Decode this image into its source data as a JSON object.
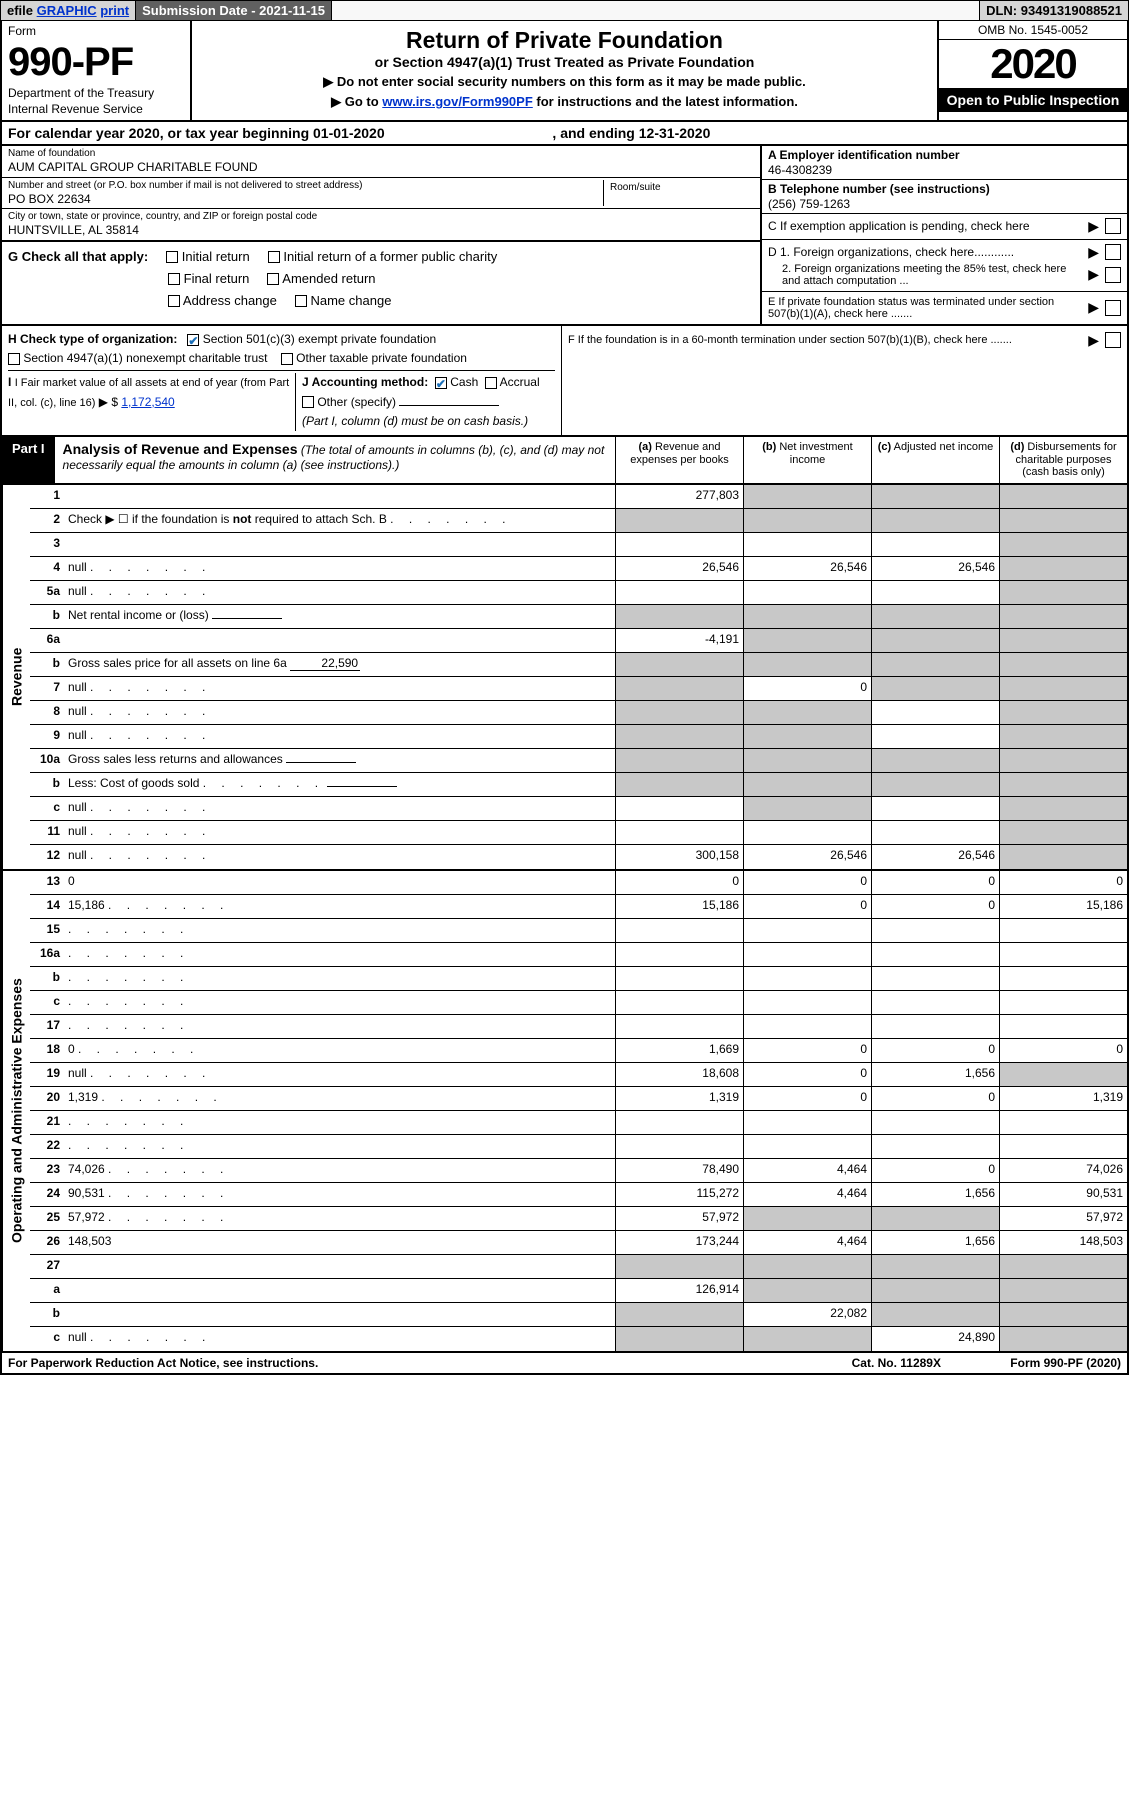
{
  "topbar": {
    "efile": "efile",
    "graphic": "GRAPHIC",
    "print": "print",
    "sub_date_label": "Submission Date - ",
    "sub_date": "2021-11-15",
    "dln_label": "DLN: ",
    "dln": "93491319088521"
  },
  "head": {
    "form_word": "Form",
    "form_num": "990-PF",
    "dept": "Department of the Treasury",
    "irs": "Internal Revenue Service",
    "title": "Return of Private Foundation",
    "subtitle": "or Section 4947(a)(1) Trust Treated as Private Foundation",
    "instr1_prefix": "▶ Do not enter social security numbers on this form as it may be made public.",
    "instr2_prefix": "▶ Go to ",
    "instr2_link": "www.irs.gov/Form990PF",
    "instr2_suffix": " for instructions and the latest information.",
    "omb": "OMB No. 1545-0052",
    "year": "2020",
    "open": "Open to Public Inspection"
  },
  "calyear": {
    "prefix": "For calendar year 2020, or tax year beginning ",
    "begin": "01-01-2020",
    "mid": " , and ending ",
    "end": "12-31-2020"
  },
  "info": {
    "name_lbl": "Name of foundation",
    "name": "AUM CAPITAL GROUP CHARITABLE FOUND",
    "street_lbl": "Number and street (or P.O. box number if mail is not delivered to street address)",
    "street": "PO BOX 22634",
    "room_lbl": "Room/suite",
    "city_lbl": "City or town, state or province, country, and ZIP or foreign postal code",
    "city": "HUNTSVILLE, AL  35814",
    "ein_lbl": "A Employer identification number",
    "ein": "46-4308239",
    "phone_lbl": "B Telephone number (see instructions)",
    "phone": "(256) 759-1263",
    "c_lbl": "C If exemption application is pending, check here",
    "d1_lbl": "D 1. Foreign organizations, check here............",
    "d2_lbl": "2. Foreign organizations meeting the 85% test, check here and attach computation ...",
    "e_lbl": "E  If private foundation status was terminated under section 507(b)(1)(A), check here .......",
    "f_lbl": "F  If the foundation is in a 60-month termination under section 507(b)(1)(B), check here ......."
  },
  "g": {
    "label": "G Check all that apply:",
    "items": [
      "Initial return",
      "Initial return of a former public charity",
      "Final return",
      "Amended return",
      "Address change",
      "Name change"
    ]
  },
  "h": {
    "label": "H Check type of organization:",
    "opt1": "Section 501(c)(3) exempt private foundation",
    "opt2": "Section 4947(a)(1) nonexempt charitable trust",
    "opt3": "Other taxable private foundation"
  },
  "i": {
    "label": "I Fair market value of all assets at end of year (from Part II, col. (c), line 16)",
    "amount_prefix": "▶ $ ",
    "amount": "1,172,540"
  },
  "j": {
    "label": "J Accounting method:",
    "cash": "Cash",
    "accrual": "Accrual",
    "other": "Other (specify)",
    "note": "(Part I, column (d) must be on cash basis.)"
  },
  "part1": {
    "badge": "Part I",
    "title": "Analysis of Revenue and Expenses",
    "title_note": "(The total of amounts in columns (b), (c), and (d) may not necessarily equal the amounts in column (a) (see instructions).)",
    "cols": {
      "a": "(a) Revenue and expenses per books",
      "b": "(b) Net investment income",
      "c": "(c) Adjusted net income",
      "d": "(d) Disbursements for charitable purposes (cash basis only)"
    }
  },
  "sections": {
    "revenue": "Revenue",
    "expenses": "Operating and Administrative Expenses"
  },
  "rows": [
    {
      "n": "1",
      "d": null,
      "a": "277,803",
      "b": null,
      "c": null,
      "shade_b": true,
      "shade_c": true,
      "shade_d": true
    },
    {
      "n": "2",
      "d": "Check ▶ ☐ if the foundation is <b>not</b> required to attach Sch. B",
      "dots": true,
      "noamt": true
    },
    {
      "n": "3",
      "d": null,
      "a": "",
      "b": "",
      "c": "",
      "shade_d": true
    },
    {
      "n": "4",
      "d": null,
      "dots": true,
      "a": "26,546",
      "b": "26,546",
      "c": "26,546",
      "shade_d": true
    },
    {
      "n": "5a",
      "d": null,
      "dots": true,
      "a": "",
      "b": "",
      "c": "",
      "shade_d": true
    },
    {
      "n": "b",
      "d": "Net rental income or (loss)",
      "inline": "",
      "noamt_bcde": true
    },
    {
      "n": "6a",
      "d": null,
      "a": "-4,191",
      "b": null,
      "c": null,
      "shade_b": true,
      "shade_c": true,
      "shade_d": true
    },
    {
      "n": "b",
      "d": "Gross sales price for all assets on line 6a",
      "inline": "22,590",
      "noamt_bcde": true
    },
    {
      "n": "7",
      "d": null,
      "dots": true,
      "a": null,
      "b": "0",
      "c": null,
      "shade_a": true,
      "shade_c": true,
      "shade_d": true
    },
    {
      "n": "8",
      "d": null,
      "dots": true,
      "a": null,
      "b": null,
      "c": "",
      "shade_a": true,
      "shade_b": true,
      "shade_d": true
    },
    {
      "n": "9",
      "d": null,
      "dots": true,
      "a": null,
      "b": null,
      "c": "",
      "shade_a": true,
      "shade_b": true,
      "shade_d": true
    },
    {
      "n": "10a",
      "d": "Gross sales less returns and allowances",
      "inline": "",
      "noamt_bcde": true
    },
    {
      "n": "b",
      "d": "Less: Cost of goods sold",
      "dots": true,
      "inline": "",
      "noamt_bcde": true
    },
    {
      "n": "c",
      "d": null,
      "dots": true,
      "a": "",
      "b": null,
      "c": "",
      "shade_b": true,
      "shade_d": true
    },
    {
      "n": "11",
      "d": null,
      "dots": true,
      "a": "",
      "b": "",
      "c": "",
      "shade_d": true
    },
    {
      "n": "12",
      "d": null,
      "dots": true,
      "a": "300,158",
      "b": "26,546",
      "c": "26,546",
      "shade_d": true
    }
  ],
  "exp_rows": [
    {
      "n": "13",
      "d": "0",
      "a": "0",
      "b": "0",
      "c": "0"
    },
    {
      "n": "14",
      "d": "15,186",
      "dots": true,
      "a": "15,186",
      "b": "0",
      "c": "0"
    },
    {
      "n": "15",
      "d": "",
      "dots": true,
      "a": "",
      "b": "",
      "c": ""
    },
    {
      "n": "16a",
      "d": "",
      "dots": true,
      "a": "",
      "b": "",
      "c": ""
    },
    {
      "n": "b",
      "d": "",
      "dots": true,
      "a": "",
      "b": "",
      "c": ""
    },
    {
      "n": "c",
      "d": "",
      "dots": true,
      "a": "",
      "b": "",
      "c": ""
    },
    {
      "n": "17",
      "d": "",
      "dots": true,
      "a": "",
      "b": "",
      "c": ""
    },
    {
      "n": "18",
      "d": "0",
      "dots": true,
      "a": "1,669",
      "b": "0",
      "c": "0"
    },
    {
      "n": "19",
      "d": null,
      "dots": true,
      "a": "18,608",
      "b": "0",
      "c": "1,656",
      "shade_d": true
    },
    {
      "n": "20",
      "d": "1,319",
      "dots": true,
      "a": "1,319",
      "b": "0",
      "c": "0"
    },
    {
      "n": "21",
      "d": "",
      "dots": true,
      "a": "",
      "b": "",
      "c": ""
    },
    {
      "n": "22",
      "d": "",
      "dots": true,
      "a": "",
      "b": "",
      "c": ""
    },
    {
      "n": "23",
      "d": "74,026",
      "dots": true,
      "a": "78,490",
      "b": "4,464",
      "c": "0"
    },
    {
      "n": "24",
      "d": "90,531",
      "dots": true,
      "a": "115,272",
      "b": "4,464",
      "c": "1,656"
    },
    {
      "n": "25",
      "d": "57,972",
      "dots": true,
      "a": "57,972",
      "b": null,
      "c": null,
      "shade_b": true,
      "shade_c": true
    },
    {
      "n": "26",
      "d": "148,503",
      "a": "173,244",
      "b": "4,464",
      "c": "1,656"
    },
    {
      "n": "27",
      "d": null,
      "a": null,
      "b": null,
      "c": null,
      "shade_a": true,
      "shade_b": true,
      "shade_c": true,
      "shade_d": true
    },
    {
      "n": "a",
      "d": null,
      "a": "126,914",
      "b": null,
      "c": null,
      "shade_b": true,
      "shade_c": true,
      "shade_d": true
    },
    {
      "n": "b",
      "d": null,
      "a": null,
      "b": "22,082",
      "c": null,
      "shade_a": true,
      "shade_c": true,
      "shade_d": true
    },
    {
      "n": "c",
      "d": null,
      "dots": true,
      "a": null,
      "b": null,
      "c": "24,890",
      "shade_a": true,
      "shade_b": true,
      "shade_d": true
    }
  ],
  "footer": {
    "left": "For Paperwork Reduction Act Notice, see instructions.",
    "mid": "Cat. No. 11289X",
    "right": "Form 990-PF (2020)"
  },
  "colors": {
    "link": "#0033cc",
    "shade": "#c8c8c8",
    "darkbar": "#606060",
    "lightbar": "#d5d5d5",
    "check": "#1b6fb8"
  }
}
